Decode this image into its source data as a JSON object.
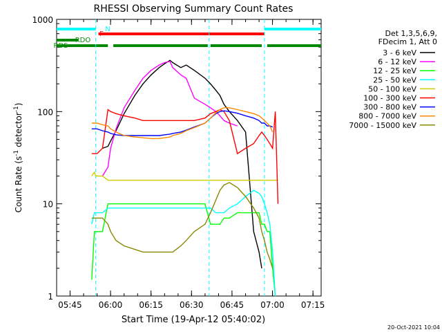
{
  "chart_data": {
    "type": "line",
    "title": "RHESSI Observing Summary Count Rates",
    "xlabel": "Start Time (19-Apr-12 05:40:02)",
    "ylabel": "Count Rate (s",
    "ylabel_sup": "-1",
    "ylabel_mid": " detector",
    "ylabel_end": ")",
    "yscale": "log",
    "ylim": [
      1,
      1000
    ],
    "xlim": [
      "05:40:02",
      "07:18:00"
    ],
    "y_ticks": [
      "1",
      "10",
      "100",
      "1000"
    ],
    "x_ticks": [
      "05:45",
      "06:00",
      "06:15",
      "06:30",
      "06:45",
      "07:00",
      "07:15"
    ],
    "legend_header": [
      "Det 1,3,5,6,9,",
      "FDecim 1, Att 0"
    ],
    "legend_position": "right",
    "timestamp": "20-Oct-2021 10:04",
    "x_minutes": [
      0,
      7,
      12.5,
      13,
      14,
      14.5,
      15,
      17,
      19,
      20,
      22,
      25,
      29,
      32,
      35,
      38,
      40,
      42,
      43,
      46,
      48,
      51,
      55,
      57,
      59,
      60.5,
      62,
      64,
      67,
      70,
      73,
      75,
      76,
      77,
      78,
      79,
      80,
      81,
      82
    ],
    "series": [
      {
        "name": "3 - 6 keV",
        "color": "#000000",
        "values": [
          null,
          null,
          null,
          null,
          null,
          null,
          null,
          40,
          42,
          48,
          62,
          95,
          150,
          200,
          250,
          300,
          330,
          360,
          340,
          300,
          320,
          280,
          230,
          200,
          170,
          150,
          120,
          100,
          80,
          60,
          5,
          3,
          2,
          null,
          null,
          null,
          null,
          null,
          null
        ]
      },
      {
        "name": "6 - 12 keV",
        "color": "#ff00ff",
        "values": [
          null,
          null,
          null,
          null,
          null,
          null,
          null,
          20,
          25,
          40,
          65,
          110,
          170,
          230,
          280,
          320,
          340,
          350,
          300,
          250,
          230,
          140,
          120,
          110,
          100,
          90,
          80,
          75,
          70,
          null,
          null,
          null,
          null,
          null,
          null,
          null,
          null,
          null,
          null
        ]
      },
      {
        "name": "12 - 25 keV",
        "color": "#00ff00",
        "values": [
          null,
          null,
          null,
          1.5,
          5,
          5,
          5,
          5,
          10,
          10,
          10,
          10,
          10,
          10,
          10,
          10,
          10,
          10,
          10,
          10,
          10,
          10,
          10,
          6,
          6,
          6,
          7,
          7,
          8,
          8,
          8,
          8,
          6,
          6,
          5,
          5,
          2,
          1,
          null
        ]
      },
      {
        "name": "25 - 50 keV",
        "color": "#00ffff",
        "values": [
          null,
          null,
          null,
          6,
          8,
          8,
          8,
          8,
          9,
          9,
          9,
          9,
          9,
          9,
          9,
          9,
          9,
          9,
          9,
          9,
          9,
          9,
          9,
          9,
          8,
          8,
          8,
          9,
          10,
          12,
          14,
          13,
          12,
          10,
          8,
          6,
          3,
          1,
          null
        ]
      },
      {
        "name": "50 - 100 keV",
        "color": "#cccc00",
        "values": [
          null,
          null,
          null,
          20,
          22,
          20,
          20,
          20,
          18,
          18,
          18,
          18,
          18,
          18,
          18,
          18,
          18,
          18,
          18,
          18,
          18,
          18,
          18,
          18,
          18,
          18,
          18,
          18,
          18,
          18,
          18,
          18,
          18,
          18,
          18,
          18,
          18,
          18,
          18
        ]
      },
      {
        "name": "100 - 300 keV",
        "color": "#ff0000",
        "values": [
          null,
          null,
          null,
          35,
          35,
          35,
          35,
          40,
          105,
          100,
          95,
          90,
          85,
          80,
          80,
          80,
          80,
          80,
          80,
          80,
          80,
          80,
          85,
          95,
          100,
          105,
          100,
          80,
          35,
          40,
          45,
          55,
          60,
          55,
          50,
          45,
          40,
          100,
          10
        ]
      },
      {
        "name": "300 - 800 keV",
        "color": "#0000ff",
        "values": [
          null,
          null,
          null,
          65,
          65,
          65,
          65,
          62,
          60,
          58,
          56,
          55,
          55,
          55,
          55,
          55,
          56,
          57,
          58,
          60,
          63,
          68,
          75,
          85,
          95,
          100,
          102,
          100,
          96,
          90,
          85,
          80,
          75,
          75,
          70,
          70,
          68,
          null,
          null
        ]
      },
      {
        "name": "800 - 7000 keV",
        "color": "#ff8800",
        "values": [
          null,
          null,
          null,
          75,
          75,
          75,
          75,
          72,
          70,
          65,
          60,
          55,
          53,
          52,
          51,
          51,
          52,
          53,
          55,
          58,
          62,
          67,
          75,
          85,
          97,
          105,
          110,
          110,
          105,
          100,
          95,
          90,
          85,
          80,
          75,
          70,
          60,
          null,
          null
        ]
      },
      {
        "name": "7000 - 15000 keV",
        "color": "#888800",
        "values": [
          null,
          null,
          null,
          7,
          7,
          7,
          7,
          7,
          6,
          5,
          4,
          3.5,
          3.2,
          3,
          3,
          3,
          3,
          3,
          3,
          3.5,
          4,
          5,
          6,
          8,
          11,
          14,
          16,
          17,
          15,
          12,
          9,
          7,
          5,
          4,
          3,
          2.5,
          2,
          null,
          null
        ]
      }
    ],
    "flag_bars": [
      {
        "label": "N",
        "color": "#00ffff",
        "segments": [
          [
            0,
            14.5
          ],
          [
            77,
            98
          ]
        ]
      },
      {
        "label": "F",
        "color": "#ff0000",
        "segments": [
          [
            15.5,
            77
          ]
        ]
      },
      {
        "label": "RDO",
        "color": "#008800",
        "segments": [
          [
            0,
            8
          ]
        ]
      },
      {
        "label": "RDS",
        "color": "#008800",
        "segments": [
          [
            0,
            19
          ],
          [
            21,
            56
          ],
          [
            57,
            76
          ],
          [
            78,
            98
          ]
        ]
      }
    ]
  }
}
